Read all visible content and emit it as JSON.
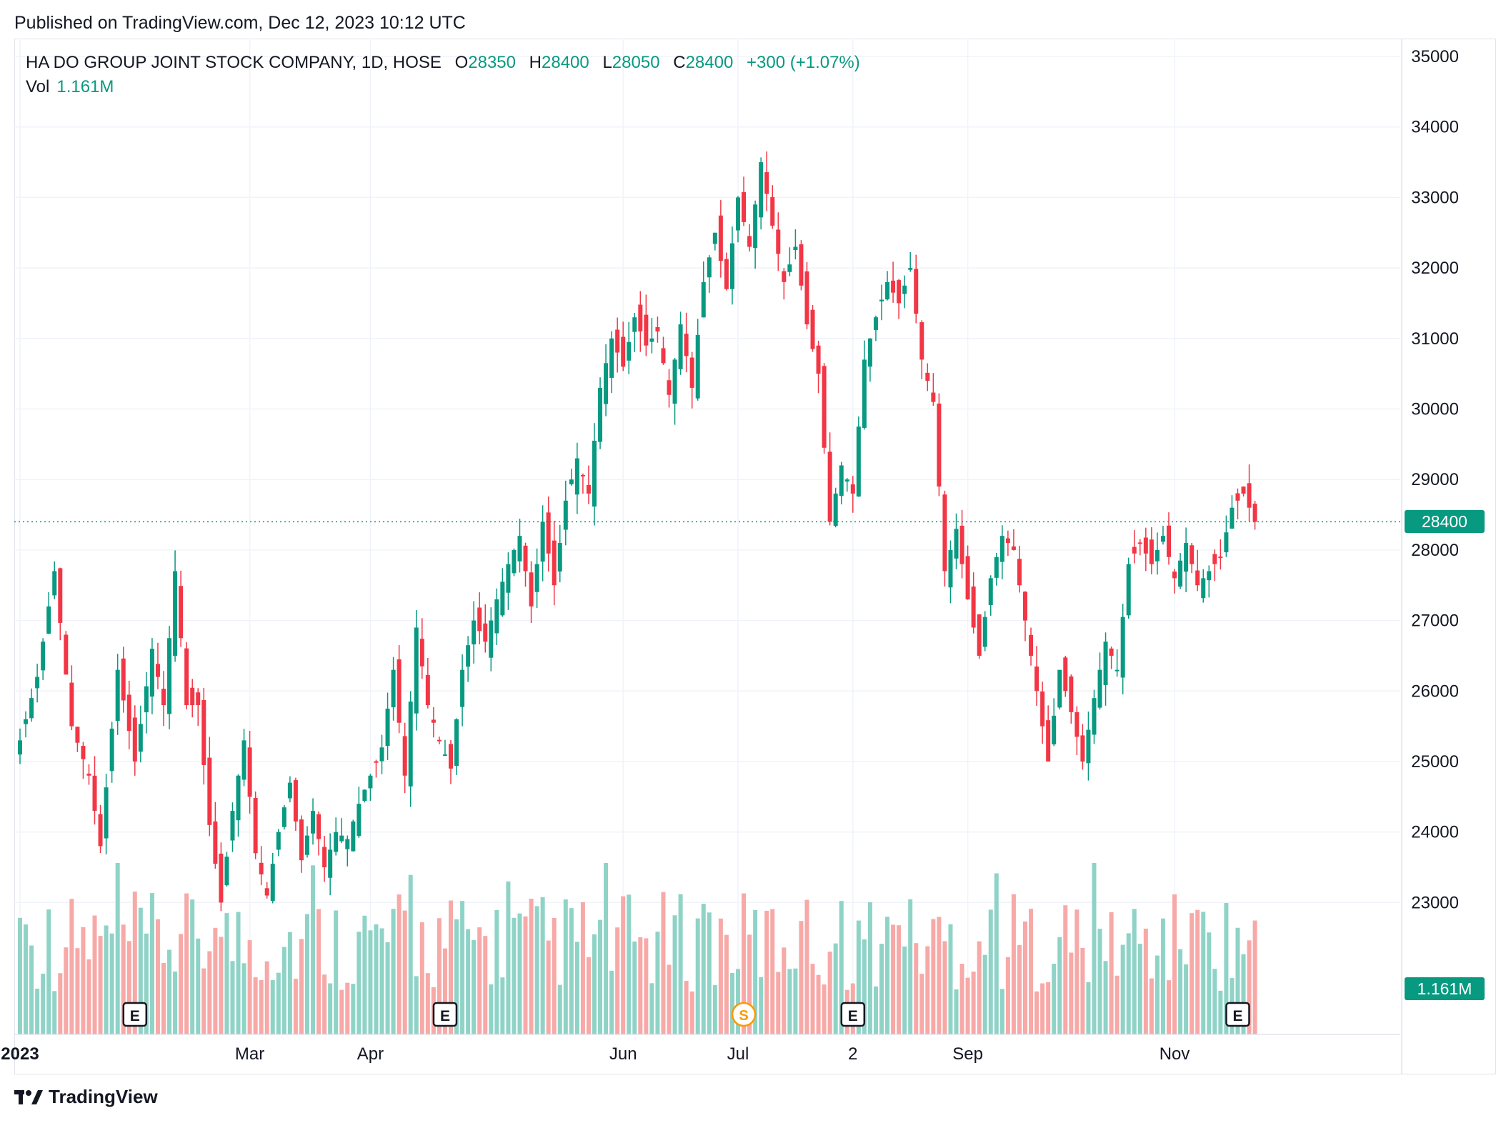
{
  "header": {
    "published": "Published on TradingView.com, Dec 12, 2023 10:12 UTC"
  },
  "legend": {
    "symbol": "HA DO GROUP JOINT STOCK COMPANY, 1D, HOSE",
    "open_label": "O",
    "open": "28350",
    "high_label": "H",
    "high": "28400",
    "low_label": "L",
    "low": "28050",
    "close_label": "C",
    "close": "28400",
    "change": "+300 (+1.07%)",
    "vol_label": "Vol",
    "vol": "1.161M"
  },
  "price_tag": "28400",
  "vol_tag": "1.161M",
  "footer": {
    "brand": "TradingView"
  },
  "colors": {
    "up": "#089981",
    "down": "#f23645",
    "up_vol": "#8fd3c7",
    "down_vol": "#f7a9a7",
    "grid": "#f0f3fa"
  },
  "chart_data": {
    "type": "candlestick",
    "title": "HA DO GROUP JOINT STOCK COMPANY, 1D, HOSE",
    "y_ticks": [
      23000,
      24000,
      25000,
      26000,
      27000,
      28000,
      29000,
      30000,
      31000,
      32000,
      33000,
      34000,
      35000
    ],
    "y_tick_labels": [
      "23000",
      "24000",
      "25000",
      "26000",
      "27000",
      "28000",
      "29000",
      "30000",
      "31000",
      "32000",
      "33000",
      "34000",
      "35000"
    ],
    "ylim": [
      22000,
      35000
    ],
    "x_labels": [
      {
        "label": "2023",
        "index": 0
      },
      {
        "label": "Mar",
        "index": 40
      },
      {
        "label": "Apr",
        "index": 61
      },
      {
        "label": "Jun",
        "index": 105
      },
      {
        "label": "Jul",
        "index": 125
      },
      {
        "label": "2",
        "index": 145
      },
      {
        "label": "Sep",
        "index": 165
      },
      {
        "label": "Nov",
        "index": 201
      }
    ],
    "events": [
      {
        "label": "E",
        "index": 20
      },
      {
        "label": "E",
        "index": 74
      },
      {
        "label": "S",
        "index": 126
      },
      {
        "label": "E",
        "index": 145
      },
      {
        "label": "E",
        "index": 212
      }
    ],
    "last_price": 28400,
    "last_volume": "1.161M",
    "anchors": [
      [
        0,
        25300
      ],
      [
        3,
        26200
      ],
      [
        6,
        27700
      ],
      [
        9,
        25500
      ],
      [
        12,
        24800
      ],
      [
        14,
        23800
      ],
      [
        17,
        26300
      ],
      [
        20,
        25000
      ],
      [
        23,
        26600
      ],
      [
        25,
        25800
      ],
      [
        27,
        27700
      ],
      [
        29,
        25800
      ],
      [
        31,
        25800
      ],
      [
        33,
        24100
      ],
      [
        35,
        23000
      ],
      [
        37,
        24300
      ],
      [
        39,
        25300
      ],
      [
        41,
        23700
      ],
      [
        43,
        23100
      ],
      [
        45,
        24000
      ],
      [
        47,
        24700
      ],
      [
        49,
        23600
      ],
      [
        51,
        24300
      ],
      [
        53,
        23500
      ],
      [
        55,
        24000
      ],
      [
        57,
        23900
      ],
      [
        59,
        24400
      ],
      [
        61,
        24800
      ],
      [
        63,
        25200
      ],
      [
        65,
        26300
      ],
      [
        67,
        24800
      ],
      [
        69,
        26900
      ],
      [
        71,
        25800
      ],
      [
        73,
        25300
      ],
      [
        75,
        24900
      ],
      [
        77,
        26300
      ],
      [
        79,
        27000
      ],
      [
        81,
        26700
      ],
      [
        83,
        27300
      ],
      [
        85,
        27800
      ],
      [
        87,
        28200
      ],
      [
        89,
        27200
      ],
      [
        91,
        28400
      ],
      [
        93,
        27500
      ],
      [
        95,
        28700
      ],
      [
        97,
        29300
      ],
      [
        99,
        28800
      ],
      [
        101,
        30300
      ],
      [
        103,
        31000
      ],
      [
        105,
        30600
      ],
      [
        107,
        31300
      ],
      [
        109,
        30900
      ],
      [
        111,
        31100
      ],
      [
        113,
        30200
      ],
      [
        115,
        31200
      ],
      [
        117,
        30300
      ],
      [
        119,
        31800
      ],
      [
        121,
        32500
      ],
      [
        123,
        31700
      ],
      [
        125,
        33000
      ],
      [
        127,
        32300
      ],
      [
        129,
        33500
      ],
      [
        131,
        32600
      ],
      [
        133,
        31800
      ],
      [
        135,
        32300
      ],
      [
        137,
        31200
      ],
      [
        139,
        30500
      ],
      [
        141,
        28400
      ],
      [
        143,
        29200
      ],
      [
        145,
        28800
      ],
      [
        147,
        30700
      ],
      [
        149,
        31300
      ],
      [
        151,
        31800
      ],
      [
        153,
        31500
      ],
      [
        155,
        32000
      ],
      [
        157,
        30700
      ],
      [
        159,
        30100
      ],
      [
        161,
        27700
      ],
      [
        163,
        28300
      ],
      [
        165,
        27300
      ],
      [
        167,
        26500
      ],
      [
        169,
        27600
      ],
      [
        171,
        28200
      ],
      [
        173,
        28000
      ],
      [
        175,
        27000
      ],
      [
        177,
        26000
      ],
      [
        179,
        25000
      ],
      [
        181,
        26300
      ],
      [
        183,
        25700
      ],
      [
        185,
        25000
      ],
      [
        187,
        25900
      ],
      [
        189,
        26700
      ],
      [
        191,
        26300
      ],
      [
        193,
        27800
      ],
      [
        195,
        28100
      ],
      [
        197,
        27800
      ],
      [
        199,
        28200
      ],
      [
        201,
        27600
      ],
      [
        203,
        28100
      ],
      [
        205,
        27500
      ],
      [
        207,
        27700
      ],
      [
        209,
        27900
      ],
      [
        211,
        28600
      ],
      [
        213,
        28800
      ],
      [
        215,
        28400
      ]
    ]
  }
}
